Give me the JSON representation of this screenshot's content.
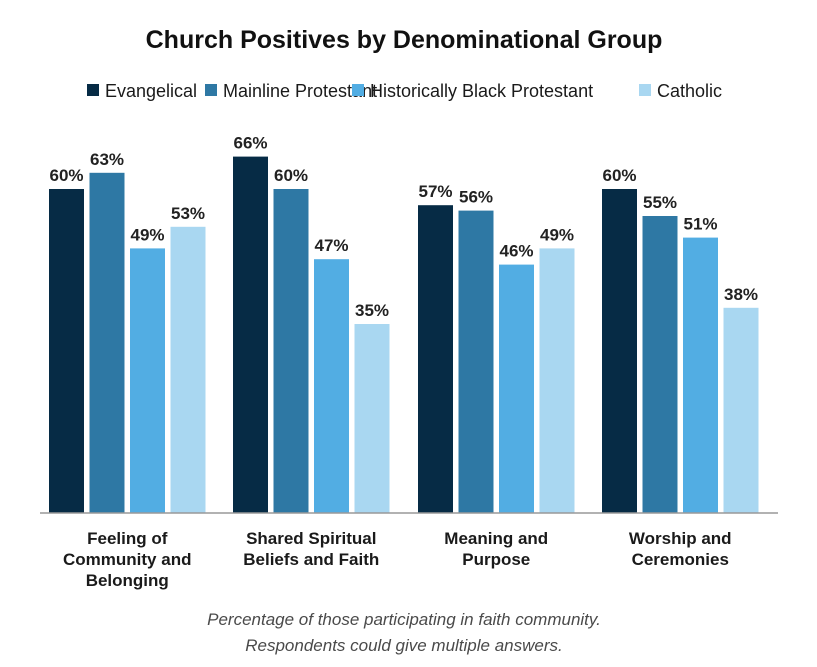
{
  "chart_data": {
    "type": "bar",
    "title": "Church Positives by Denominational Group",
    "xlabel": "",
    "ylabel": "",
    "ylim": [
      0,
      70
    ],
    "unit": "%",
    "grid": false,
    "legend_position": "top",
    "categories": [
      [
        "Feeling of",
        "Community and",
        "Belonging"
      ],
      [
        "Shared Spiritual",
        "Beliefs and Faith"
      ],
      [
        "Meaning and",
        "Purpose"
      ],
      [
        "Worship and",
        "Ceremonies"
      ]
    ],
    "series": [
      {
        "name": "Evangelical",
        "color": "#062b45",
        "values": [
          60,
          66,
          57,
          60
        ]
      },
      {
        "name": "Mainline Protestant",
        "color": "#2e78a4",
        "values": [
          63,
          60,
          56,
          55
        ]
      },
      {
        "name": "Historically Black Protestant",
        "color": "#52ade3",
        "values": [
          49,
          47,
          46,
          51
        ]
      },
      {
        "name": "Catholic",
        "color": "#a9d7f1",
        "values": [
          53,
          35,
          49,
          38
        ]
      }
    ],
    "notes": [
      "Percentage of those participating in faith community.",
      "Respondents could give multiple answers."
    ]
  }
}
